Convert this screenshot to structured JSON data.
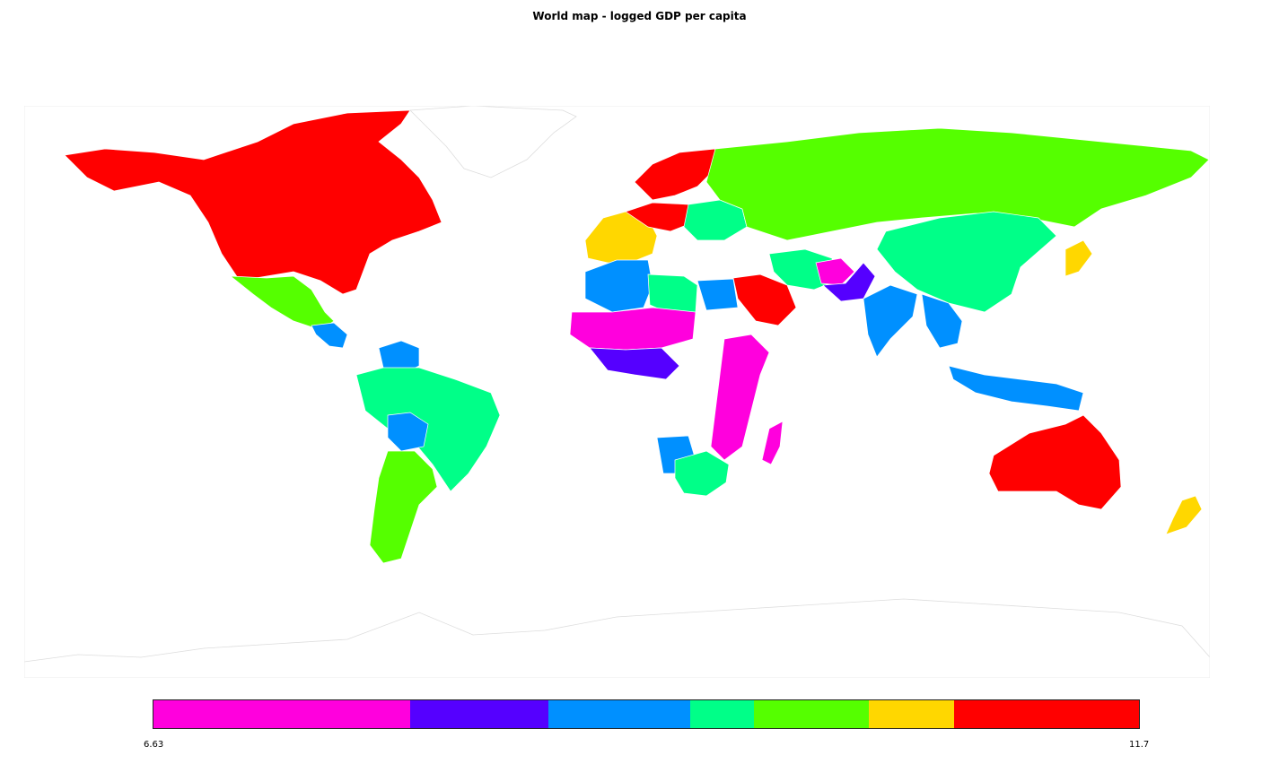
{
  "title": "World map - logged GDP per capita",
  "legend": {
    "min_label": "6.63",
    "max_label": "11.7",
    "min": 6.63,
    "max": 11.7,
    "bins": [
      {
        "from": 6.63,
        "to": 7.95,
        "color": "#ff00dd"
      },
      {
        "from": 7.95,
        "to": 8.66,
        "color": "#5500ff"
      },
      {
        "from": 8.66,
        "to": 9.39,
        "color": "#0090ff"
      },
      {
        "from": 9.39,
        "to": 9.72,
        "color": "#00ff88"
      },
      {
        "from": 9.72,
        "to": 10.31,
        "color": "#55ff00"
      },
      {
        "from": 10.31,
        "to": 10.75,
        "color": "#ffd700"
      },
      {
        "from": 10.75,
        "to": 11.7,
        "color": "#ff0000"
      }
    ]
  },
  "colors": {
    "no_data_fill": "#ffffff",
    "no_data_stroke": "#dddddd",
    "border": "#ffffff"
  },
  "regions": [
    {
      "id": "north-america",
      "color": "#ff0000"
    },
    {
      "id": "mexico",
      "color": "#55ff00"
    },
    {
      "id": "central-america",
      "color": "#0090ff"
    },
    {
      "id": "south-america-brazil",
      "color": "#00ff88"
    },
    {
      "id": "south-america-south",
      "color": "#55ff00"
    },
    {
      "id": "bolivia",
      "color": "#0090ff"
    },
    {
      "id": "venezuela",
      "color": "#0090ff"
    },
    {
      "id": "greenland",
      "color": "nodata"
    },
    {
      "id": "scandinavia",
      "color": "#ff0000"
    },
    {
      "id": "western-europe",
      "color": "#ffd700"
    },
    {
      "id": "central-europe",
      "color": "#ff0000"
    },
    {
      "id": "eastern-europe",
      "color": "#00ff88"
    },
    {
      "id": "russia",
      "color": "#55ff00"
    },
    {
      "id": "china",
      "color": "#00ff88"
    },
    {
      "id": "japan",
      "color": "#ffd700"
    },
    {
      "id": "india",
      "color": "#0090ff"
    },
    {
      "id": "pakistan",
      "color": "#5500ff"
    },
    {
      "id": "afghanistan",
      "color": "#ff00dd"
    },
    {
      "id": "saudi-arabia",
      "color": "#ff0000"
    },
    {
      "id": "iran",
      "color": "#00ff88"
    },
    {
      "id": "southeast-asia",
      "color": "#0090ff"
    },
    {
      "id": "indonesia",
      "color": "#0090ff"
    },
    {
      "id": "north-africa-algeria",
      "color": "#0090ff"
    },
    {
      "id": "libya",
      "color": "#00ff88"
    },
    {
      "id": "egypt",
      "color": "#0090ff"
    },
    {
      "id": "sahel",
      "color": "#ff00dd"
    },
    {
      "id": "west-africa",
      "color": "#5500ff"
    },
    {
      "id": "east-africa",
      "color": "#ff00dd"
    },
    {
      "id": "southern-africa",
      "color": "#00ff88"
    },
    {
      "id": "angola",
      "color": "#0090ff"
    },
    {
      "id": "madagascar",
      "color": "#ff00dd"
    },
    {
      "id": "australia",
      "color": "#ff0000"
    },
    {
      "id": "new-zealand",
      "color": "#ffd700"
    },
    {
      "id": "antarctica",
      "color": "nodata"
    }
  ]
}
